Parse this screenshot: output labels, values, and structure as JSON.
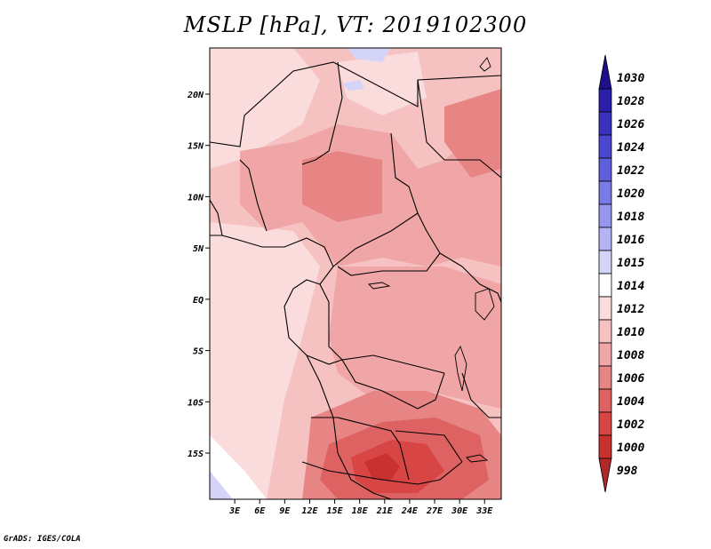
{
  "title": "MSLP [hPa], VT: 2019102300",
  "credit": "GrADS: IGES/COLA",
  "map": {
    "lat_labels": [
      "20N",
      "15N",
      "10N",
      "5N",
      "EQ",
      "5S",
      "10S",
      "15S"
    ],
    "lat_values": [
      20,
      15,
      10,
      5,
      0,
      -5,
      -10,
      -15
    ],
    "lon_labels": [
      "3E",
      "6E",
      "9E",
      "12E",
      "15E",
      "18E",
      "21E",
      "24E",
      "27E",
      "30E",
      "33E"
    ],
    "lon_values": [
      3,
      6,
      9,
      12,
      15,
      18,
      21,
      24,
      27,
      30,
      33
    ],
    "lon_range": [
      0,
      35
    ],
    "lat_range": [
      -19.5,
      24.5
    ]
  },
  "colorbar": {
    "levels": [
      "1030",
      "1028",
      "1026",
      "1024",
      "1022",
      "1020",
      "1018",
      "1016",
      "1015",
      "1014",
      "1012",
      "1010",
      "1008",
      "1006",
      "1004",
      "1002",
      "1000",
      "998"
    ],
    "colors": [
      "#1e0f8c",
      "#2a1fa8",
      "#3a32bf",
      "#4b47d0",
      "#5f5fdd",
      "#7a7ae6",
      "#9696ee",
      "#b4b4f4",
      "#d4d4f8",
      "#ffffff",
      "#fadcdc",
      "#f6c1c1",
      "#f0a6a6",
      "#e78585",
      "#df6262",
      "#d84545",
      "#c93030",
      "#b02828"
    ]
  }
}
